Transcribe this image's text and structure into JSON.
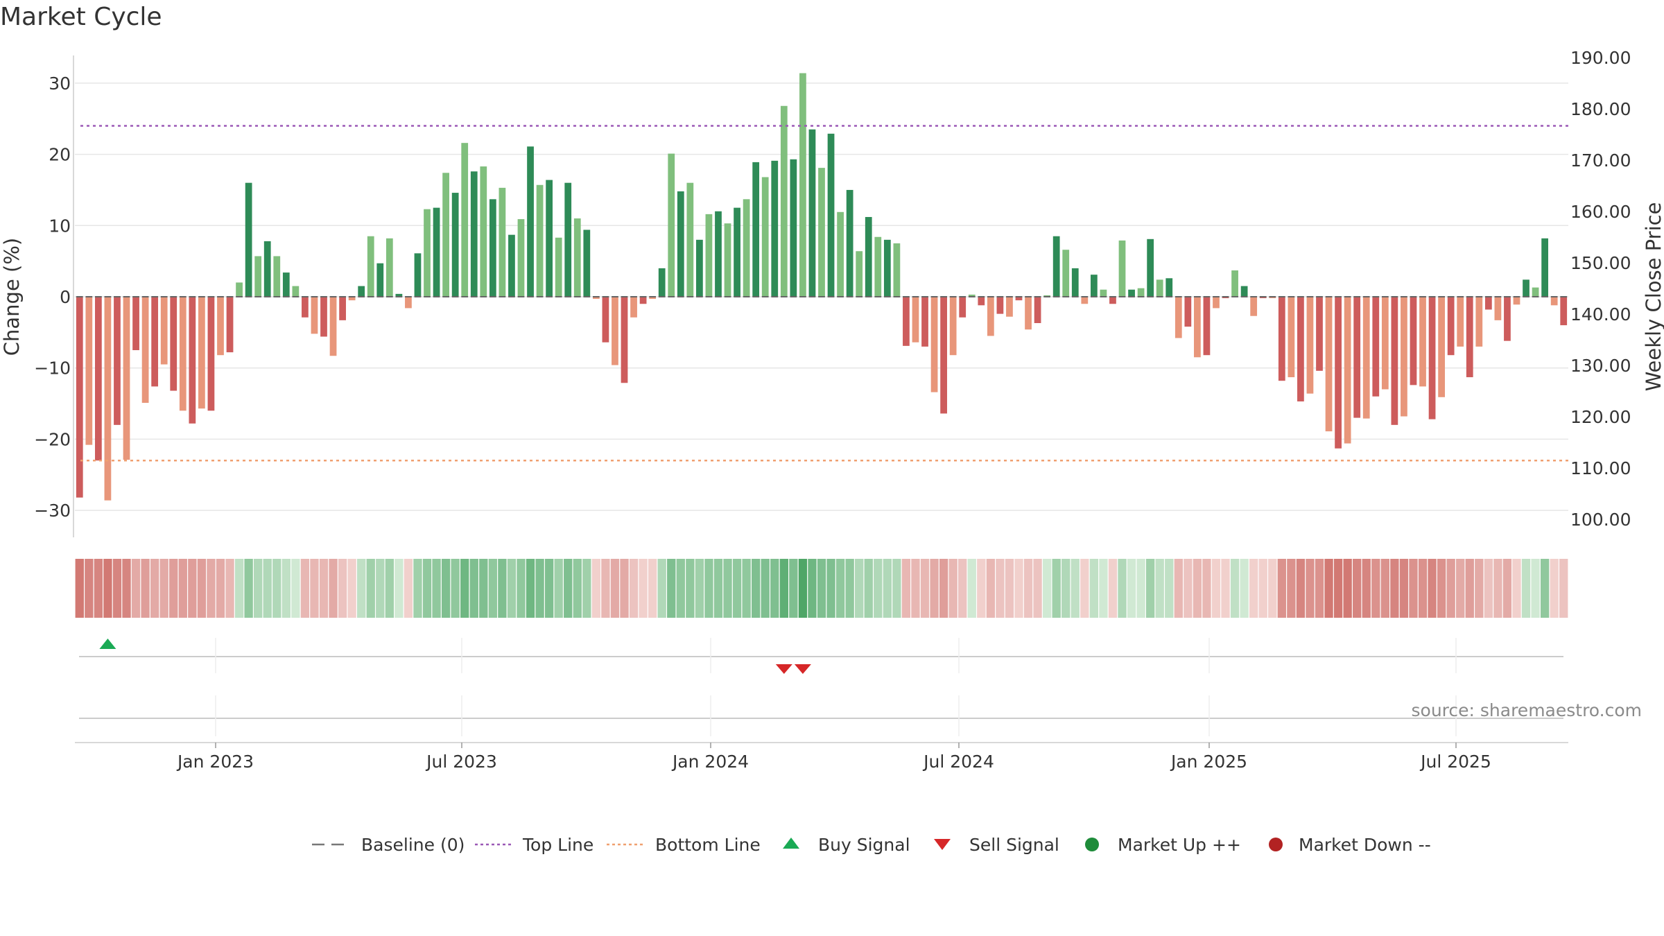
{
  "chart_data": {
    "type": "bar",
    "title": "Market Cycle",
    "ylabel": "Change (%)",
    "y2label": "Weekly Close Price",
    "ylim": [
      -34,
      34
    ],
    "y2lim": [
      95,
      192
    ],
    "yticks": [
      "30",
      "20",
      "10",
      "0",
      "−10",
      "−20",
      "−30"
    ],
    "y2ticks": [
      "190.00",
      "180.00",
      "170.00",
      "160.00",
      "150.00",
      "140.00",
      "130.00",
      "120.00",
      "110.00",
      "100.00"
    ],
    "xticks": [
      "Jan 2023",
      "Jul 2023",
      "Jan 2024",
      "Jul 2024",
      "Jan 2025",
      "Jul 2025"
    ],
    "top_line": 24,
    "bottom_line": -23,
    "values": [
      -28.2,
      -20.8,
      -23,
      -28.6,
      -18,
      -22.9,
      -7.5,
      -14.9,
      -12.6,
      -9.5,
      -13.2,
      -16,
      -17.8,
      -15.7,
      -16,
      -8.2,
      -7.8,
      2,
      16,
      5.7,
      7.8,
      5.7,
      3.4,
      1.5,
      -2.9,
      -5.2,
      -5.6,
      -8.3,
      -3.3,
      -0.5,
      1.5,
      8.5,
      4.7,
      8.2,
      0.4,
      -1.6,
      6.1,
      12.3,
      12.5,
      17.4,
      14.6,
      21.6,
      17.6,
      18.3,
      13.7,
      15.3,
      8.7,
      10.9,
      21.1,
      15.7,
      16.4,
      8.3,
      16,
      11,
      9.4,
      -0.3,
      -6.4,
      -9.6,
      -12.1,
      -2.9,
      -1,
      -0.3,
      4,
      20.1,
      14.8,
      16,
      8,
      11.6,
      12,
      10.3,
      12.5,
      13.7,
      18.9,
      16.8,
      19.1,
      26.8,
      19.3,
      31.4,
      23.5,
      18.1,
      22.9,
      11.9,
      15,
      6.4,
      11.2,
      8.4,
      8,
      7.5,
      -6.9,
      -6.4,
      -7,
      -13.4,
      -16.4,
      -8.2,
      -2.9,
      0.3,
      -1.2,
      -5.5,
      -2.4,
      -2.8,
      -0.5,
      -4.6,
      -3.7,
      0.2,
      8.5,
      6.6,
      4,
      -1,
      3.1,
      1,
      -1,
      7.9,
      1,
      1.2,
      8.1,
      2.4,
      2.6,
      -5.8,
      -4.2,
      -8.5,
      -8.2,
      -1.6,
      -0.2,
      3.7,
      1.5,
      -2.7,
      -0.2,
      -0.2,
      -11.8,
      -11.3,
      -14.7,
      -13.6,
      -10.4,
      -18.9,
      -21.3,
      -20.6,
      -17,
      -17.1,
      -14,
      -13,
      -18,
      -16.8,
      -12.4,
      -12.6,
      -17.2,
      -14.1,
      -8.2,
      -7,
      -11.3,
      -7,
      -1.8,
      -3.3,
      -6.2,
      -1.1,
      2.4,
      1.3,
      8.2,
      -1.2,
      -4
    ],
    "heat_strip": [
      -0.8,
      -0.7,
      -0.7,
      -0.8,
      -0.7,
      -0.7,
      -0.4,
      -0.5,
      -0.4,
      -0.4,
      -0.5,
      -0.5,
      -0.5,
      -0.5,
      -0.4,
      -0.4,
      -0.3,
      0.2,
      0.5,
      0.3,
      0.3,
      0.3,
      0.2,
      0.1,
      -0.3,
      -0.3,
      -0.3,
      -0.4,
      -0.2,
      -0.1,
      0.2,
      0.4,
      0.3,
      0.4,
      0.1,
      -0.1,
      0.4,
      0.5,
      0.5,
      0.6,
      0.5,
      0.7,
      0.6,
      0.6,
      0.5,
      0.6,
      0.4,
      0.5,
      0.7,
      0.6,
      0.6,
      0.4,
      0.6,
      0.5,
      0.4,
      -0.1,
      -0.3,
      -0.4,
      -0.4,
      -0.2,
      -0.1,
      -0.1,
      0.3,
      0.6,
      0.5,
      0.5,
      0.4,
      0.5,
      0.5,
      0.5,
      0.5,
      0.5,
      0.6,
      0.6,
      0.6,
      0.8,
      0.6,
      0.9,
      0.7,
      0.6,
      0.6,
      0.5,
      0.5,
      0.3,
      0.4,
      0.3,
      0.3,
      0.3,
      -0.3,
      -0.3,
      -0.3,
      -0.4,
      -0.5,
      -0.3,
      -0.2,
      0.1,
      -0.1,
      -0.3,
      -0.2,
      -0.2,
      -0.1,
      -0.2,
      -0.2,
      0.1,
      0.4,
      0.3,
      0.2,
      -0.1,
      0.2,
      0.1,
      -0.1,
      0.3,
      0.1,
      0.1,
      0.4,
      0.2,
      0.2,
      -0.3,
      -0.2,
      -0.3,
      -0.3,
      -0.1,
      -0.1,
      0.2,
      0.1,
      -0.1,
      -0.1,
      -0.1,
      -0.6,
      -0.6,
      -0.7,
      -0.6,
      -0.6,
      -0.8,
      -0.8,
      -0.8,
      -0.7,
      -0.7,
      -0.6,
      -0.6,
      -0.7,
      -0.7,
      -0.6,
      -0.6,
      -0.7,
      -0.6,
      -0.5,
      -0.4,
      -0.5,
      -0.4,
      -0.2,
      -0.3,
      -0.4,
      -0.1,
      0.2,
      0.1,
      0.5,
      -0.1,
      -0.2
    ],
    "buy_signals": [
      3
    ],
    "sell_signals": [
      75,
      77
    ],
    "legend": [
      {
        "label": "Baseline (0)",
        "symbol": "dash",
        "color": "#777777"
      },
      {
        "label": "Top Line",
        "symbol": "dotted",
        "color": "#9b59b6"
      },
      {
        "label": "Bottom Line",
        "symbol": "dotted",
        "color": "#f0a070"
      },
      {
        "label": "Buy Signal",
        "symbol": "triangle-up",
        "color": "#1aaa55"
      },
      {
        "label": "Sell Signal",
        "symbol": "triangle-down",
        "color": "#d62728"
      },
      {
        "label": "Market Up ++",
        "symbol": "circle",
        "color": "#1e8c3a"
      },
      {
        "label": "Market Down --",
        "symbol": "circle",
        "color": "#b22222"
      }
    ],
    "source": "source: sharemaestro.com",
    "colors": {
      "up_strong": "#2e8b57",
      "up_light": "#80bf7d",
      "down_strong": "#cd5c5c",
      "down_light": "#e8967a",
      "top_line": "#9b59b6",
      "bottom_line": "#f0a070",
      "grid": "#e6e6e6"
    }
  }
}
